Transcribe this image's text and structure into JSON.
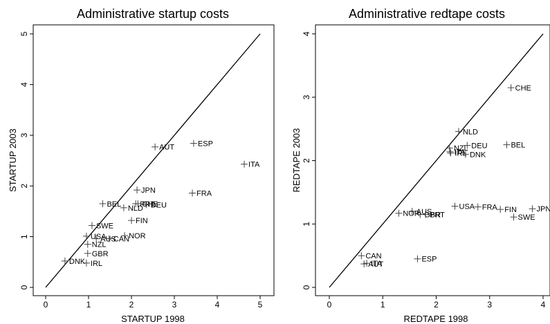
{
  "chart_data": [
    {
      "type": "scatter",
      "title": "Administrative startup costs",
      "xlabel": "STARTUP 1998",
      "ylabel": "STARTUP 2003",
      "xlim": [
        0,
        5
      ],
      "ylim": [
        0,
        5
      ],
      "xticks": [
        "0",
        "1",
        "2",
        "3",
        "4",
        "5"
      ],
      "yticks": [
        "0",
        "1",
        "2",
        "3",
        "4",
        "5"
      ],
      "reference_line": "45-degree",
      "grid": false,
      "points": [
        {
          "label": "AUT",
          "x": 2.55,
          "y": 2.77
        },
        {
          "label": "ESP",
          "x": 3.45,
          "y": 2.84
        },
        {
          "label": "ITA",
          "x": 4.63,
          "y": 2.43
        },
        {
          "label": "JPN",
          "x": 2.13,
          "y": 1.92
        },
        {
          "label": "FRA",
          "x": 3.42,
          "y": 1.86
        },
        {
          "label": "BEL",
          "x": 1.33,
          "y": 1.65
        },
        {
          "label": "PRT",
          "x": 2.1,
          "y": 1.65
        },
        {
          "label": "CHE",
          "x": 2.15,
          "y": 1.65
        },
        {
          "label": "DEU",
          "x": 2.35,
          "y": 1.63
        },
        {
          "label": "NLD",
          "x": 1.82,
          "y": 1.57
        },
        {
          "label": "FIN",
          "x": 2.0,
          "y": 1.32
        },
        {
          "label": "SWE",
          "x": 1.08,
          "y": 1.22
        },
        {
          "label": "USA",
          "x": 0.95,
          "y": 1.01
        },
        {
          "label": "NOR",
          "x": 1.84,
          "y": 1.02
        },
        {
          "label": "AUS",
          "x": 1.18,
          "y": 0.96
        },
        {
          "label": "CAN",
          "x": 1.48,
          "y": 0.96
        },
        {
          "label": "NZL",
          "x": 0.98,
          "y": 0.85
        },
        {
          "label": "GBR",
          "x": 0.98,
          "y": 0.67
        },
        {
          "label": "DNK",
          "x": 0.45,
          "y": 0.52
        },
        {
          "label": "IRL",
          "x": 0.95,
          "y": 0.48
        }
      ]
    },
    {
      "type": "scatter",
      "title": "Administrative redtape costs",
      "xlabel": "REDTAPE 1998",
      "ylabel": "REDTAPE 2003",
      "xlim": [
        0,
        4
      ],
      "ylim": [
        0,
        4
      ],
      "xticks": [
        "0",
        "1",
        "2",
        "3",
        "4"
      ],
      "yticks": [
        "0",
        "1",
        "2",
        "3",
        "4"
      ],
      "reference_line": "45-degree",
      "grid": false,
      "points": [
        {
          "label": "CHE",
          "x": 3.4,
          "y": 3.15
        },
        {
          "label": "NLD",
          "x": 2.42,
          "y": 2.46
        },
        {
          "label": "BEL",
          "x": 3.32,
          "y": 2.25
        },
        {
          "label": "DEU",
          "x": 2.58,
          "y": 2.24
        },
        {
          "label": "NZL",
          "x": 2.25,
          "y": 2.2
        },
        {
          "label": "ITA",
          "x": 2.26,
          "y": 2.14
        },
        {
          "label": "IRL",
          "x": 2.27,
          "y": 2.12
        },
        {
          "label": "DNK",
          "x": 2.55,
          "y": 2.1
        },
        {
          "label": "USA",
          "x": 2.35,
          "y": 1.28
        },
        {
          "label": "FRA",
          "x": 2.78,
          "y": 1.27
        },
        {
          "label": "FIN",
          "x": 3.2,
          "y": 1.23
        },
        {
          "label": "JPN",
          "x": 3.8,
          "y": 1.24
        },
        {
          "label": "SWE",
          "x": 3.45,
          "y": 1.11
        },
        {
          "label": "AUS",
          "x": 1.55,
          "y": 1.2
        },
        {
          "label": "NOR",
          "x": 1.3,
          "y": 1.17
        },
        {
          "label": "GBR",
          "x": 1.7,
          "y": 1.15
        },
        {
          "label": "PRT",
          "x": 1.8,
          "y": 1.15
        },
        {
          "label": "CAN",
          "x": 0.6,
          "y": 0.5
        },
        {
          "label": "ESP",
          "x": 1.65,
          "y": 0.45
        },
        {
          "label": "AUT",
          "x": 0.65,
          "y": 0.37
        },
        {
          "label": "ITA",
          "x": 0.7,
          "y": 0.38
        }
      ]
    }
  ]
}
